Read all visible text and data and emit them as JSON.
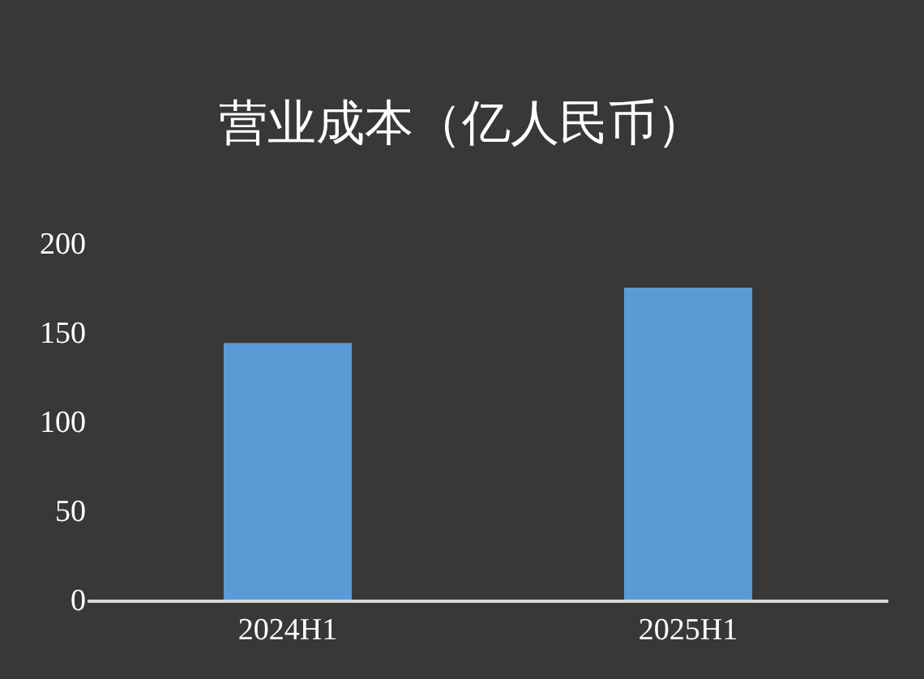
{
  "chart_data": {
    "type": "bar",
    "title": "营业成本（亿人民币）",
    "categories": [
      "2024H1",
      "2025H1"
    ],
    "series": [
      {
        "color": "#5b9bd5",
        "values": [
          144,
          175
        ]
      }
    ],
    "ylim": [
      0,
      200
    ],
    "yticks": [
      0,
      50,
      100,
      150,
      200
    ],
    "grid": false
  }
}
